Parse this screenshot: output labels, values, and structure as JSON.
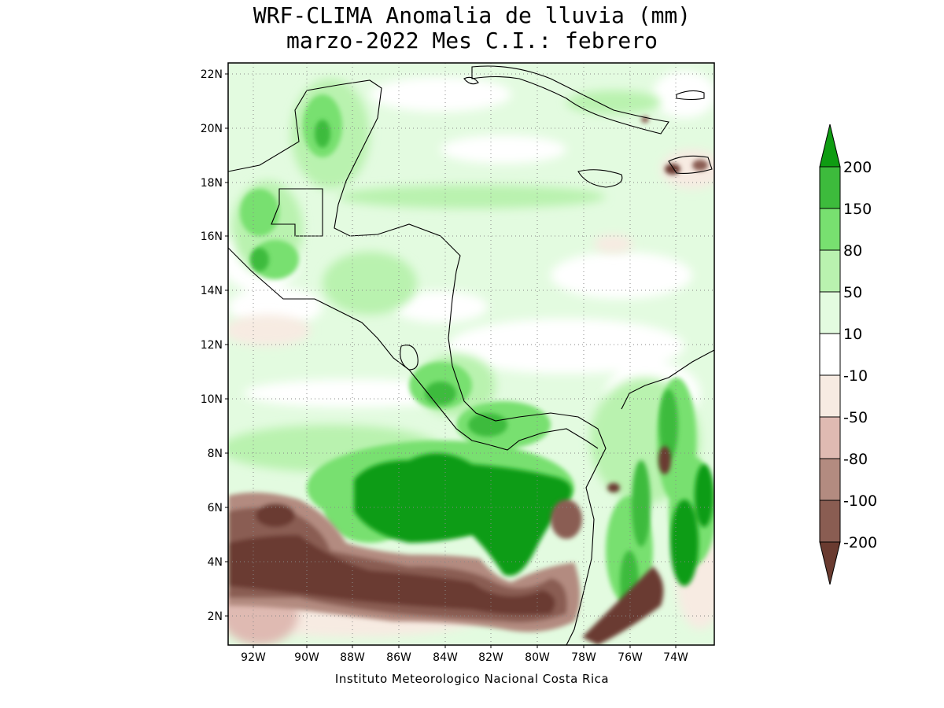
{
  "title_line1": "WRF-CLIMA Anomalia de lluvia (mm)",
  "title_line2": "marzo-2022 Mes C.I.: febrero",
  "credit": "Instituto Meteorologico Nacional Costa Rica",
  "lat_labels": [
    "22N",
    "20N",
    "18N",
    "16N",
    "14N",
    "12N",
    "10N",
    "8N",
    "6N",
    "4N",
    "2N"
  ],
  "lon_labels": [
    "92W",
    "90W",
    "88W",
    "86W",
    "84W",
    "82W",
    "80W",
    "78W",
    "76W",
    "74W"
  ],
  "map": {
    "lon_range": [
      -93.1,
      -72.5
    ],
    "lat_range": [
      1.0,
      22.5
    ],
    "dominant_positive_region": "Pacific Ocean south of Costa Rica/Panama (green, >150 mm)",
    "dominant_negative_region": "Equatorial Pacific 1N–6N (brown, < -100 mm)"
  },
  "legend": {
    "levels": [
      "200",
      "150",
      "80",
      "50",
      "10",
      "-10",
      "-50",
      "-80",
      "-100",
      "-200"
    ],
    "colors": [
      "#0f9c12",
      "#3dbb3c",
      "#78e070",
      "#b9f2af",
      "#e3fbe0",
      "#ffffff",
      "#f7ebe2",
      "#dfbab2",
      "#b38b80",
      "#8a5d52",
      "#6a3b30"
    ]
  }
}
